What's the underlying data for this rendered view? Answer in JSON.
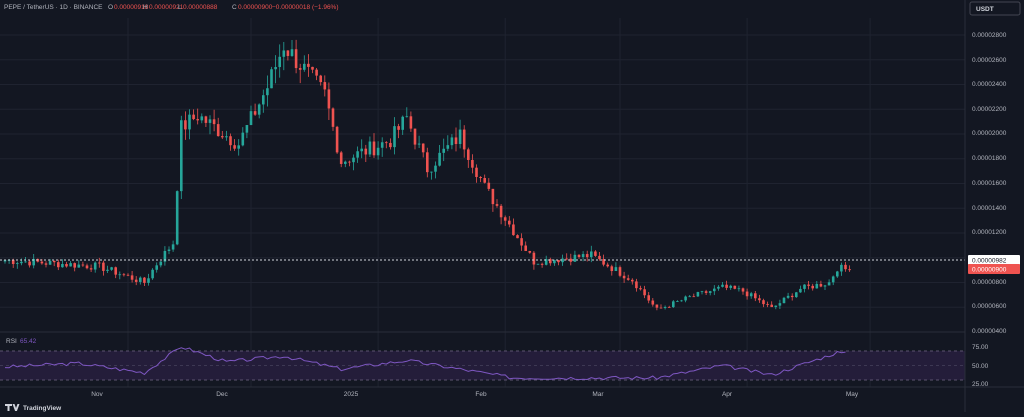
{
  "header": {
    "symbol": "PEPE / TetherUS · 1D · BINANCE",
    "ohlc": [
      {
        "label": "O",
        "value": "0.00000918"
      },
      {
        "label": "H",
        "value": "0.00000921"
      },
      {
        "label": "L",
        "value": "0.00000888"
      },
      {
        "label": "C",
        "value": "0.00000900"
      }
    ],
    "change": "−0.00000018 (−1.96%)",
    "currency_badge": "USDT"
  },
  "colors": {
    "background": "#131722",
    "up": "#26a69a",
    "down": "#ef5350",
    "grid": "#1f2330",
    "text": "#b2b5be",
    "rsi_line": "#7e57c2",
    "rsi_band": "#241d3a"
  },
  "price_scale": {
    "ticks": [
      "0.00002800",
      "0.00002600",
      "0.00002400",
      "0.00002200",
      "0.00002000",
      "0.00001800",
      "0.00001600",
      "0.00001400",
      "0.00001200",
      "0.00000982",
      "0.00000900",
      "0.00000800",
      "0.00000600",
      "0.00000400"
    ]
  },
  "markers": {
    "dotted_line_label": "0.00000982",
    "last_price_label": "0.00000900"
  },
  "rsi": {
    "label": "RSI",
    "value": "65.42",
    "ticks": [
      "75.00",
      "50.00",
      "25.00"
    ]
  },
  "time_axis": {
    "labels": [
      "Nov",
      "Dec",
      "2025",
      "Feb",
      "Mar",
      "Apr",
      "May"
    ]
  },
  "footer": {
    "brand": "TradingView"
  },
  "chart_data": {
    "type": "candlestick",
    "title": "PEPE / TetherUS · 1D · BINANCE",
    "ylabel": "USDT",
    "y_scale": "linear",
    "ylim": [
      4e-06,
      2.88e-05
    ],
    "grid": true,
    "key_points": [
      {
        "date": "2024-10-02",
        "close": 9.8e-06
      },
      {
        "date": "2024-10-25",
        "close": 9.3e-06
      },
      {
        "date": "2024-11-05",
        "close": 8e-06
      },
      {
        "date": "2024-11-08",
        "close": 9.5e-06
      },
      {
        "date": "2024-11-12",
        "close": 1.12e-05
      },
      {
        "date": "2024-11-14",
        "close": 2.05e-05
      },
      {
        "date": "2024-11-18",
        "close": 2.15e-05
      },
      {
        "date": "2024-11-28",
        "close": 1.92e-05
      },
      {
        "date": "2024-12-05",
        "close": 2.38e-05
      },
      {
        "date": "2024-12-09",
        "close": 2.72e-05
      },
      {
        "date": "2024-12-19",
        "close": 2.32e-05
      },
      {
        "date": "2024-12-23",
        "close": 1.78e-05
      },
      {
        "date": "2025-01-04",
        "close": 1.95e-05
      },
      {
        "date": "2025-01-08",
        "close": 2.13e-05
      },
      {
        "date": "2025-01-13",
        "close": 1.72e-05
      },
      {
        "date": "2025-01-21",
        "close": 1.99e-05
      },
      {
        "date": "2025-01-27",
        "close": 1.57e-05
      },
      {
        "date": "2025-02-03",
        "close": 1.22e-05
      },
      {
        "date": "2025-02-08",
        "close": 9.7e-06
      },
      {
        "date": "2025-02-22",
        "close": 1.02e-05
      },
      {
        "date": "2025-03-04",
        "close": 8.2e-06
      },
      {
        "date": "2025-03-10",
        "close": 5.8e-06
      },
      {
        "date": "2025-03-18",
        "close": 6.8e-06
      },
      {
        "date": "2025-03-26",
        "close": 7.6e-06
      },
      {
        "date": "2025-03-31",
        "close": 7.3e-06
      },
      {
        "date": "2025-04-07",
        "close": 5.9e-06
      },
      {
        "date": "2025-04-14",
        "close": 7.5e-06
      },
      {
        "date": "2025-04-21",
        "close": 8e-06
      },
      {
        "date": "2025-04-23",
        "close": 9.2e-06
      },
      {
        "date": "2025-04-26",
        "close": 9e-06
      }
    ],
    "last_close": 9e-06,
    "dotted_line_value": 9.82e-06,
    "rsi": {
      "ylim": [
        25,
        75
      ],
      "bands": [
        30,
        70
      ],
      "last": 65.42,
      "key_points": [
        {
          "date": "2024-10-02",
          "rsi": 48
        },
        {
          "date": "2024-10-20",
          "rsi": 53
        },
        {
          "date": "2024-11-05",
          "rsi": 40
        },
        {
          "date": "2024-11-14",
          "rsi": 76
        },
        {
          "date": "2024-11-25",
          "rsi": 55
        },
        {
          "date": "2024-12-09",
          "rsi": 63
        },
        {
          "date": "2024-12-23",
          "rsi": 45
        },
        {
          "date": "2025-01-08",
          "rsi": 57
        },
        {
          "date": "2025-02-03",
          "rsi": 33
        },
        {
          "date": "2025-03-10",
          "rsi": 33
        },
        {
          "date": "2025-03-26",
          "rsi": 50
        },
        {
          "date": "2025-04-07",
          "rsi": 37
        },
        {
          "date": "2025-04-23",
          "rsi": 68
        },
        {
          "date": "2025-04-26",
          "rsi": 65.4
        }
      ]
    },
    "x_tick_labels": [
      "Nov",
      "Dec",
      "2025",
      "Feb",
      "Mar",
      "Apr",
      "May"
    ]
  }
}
